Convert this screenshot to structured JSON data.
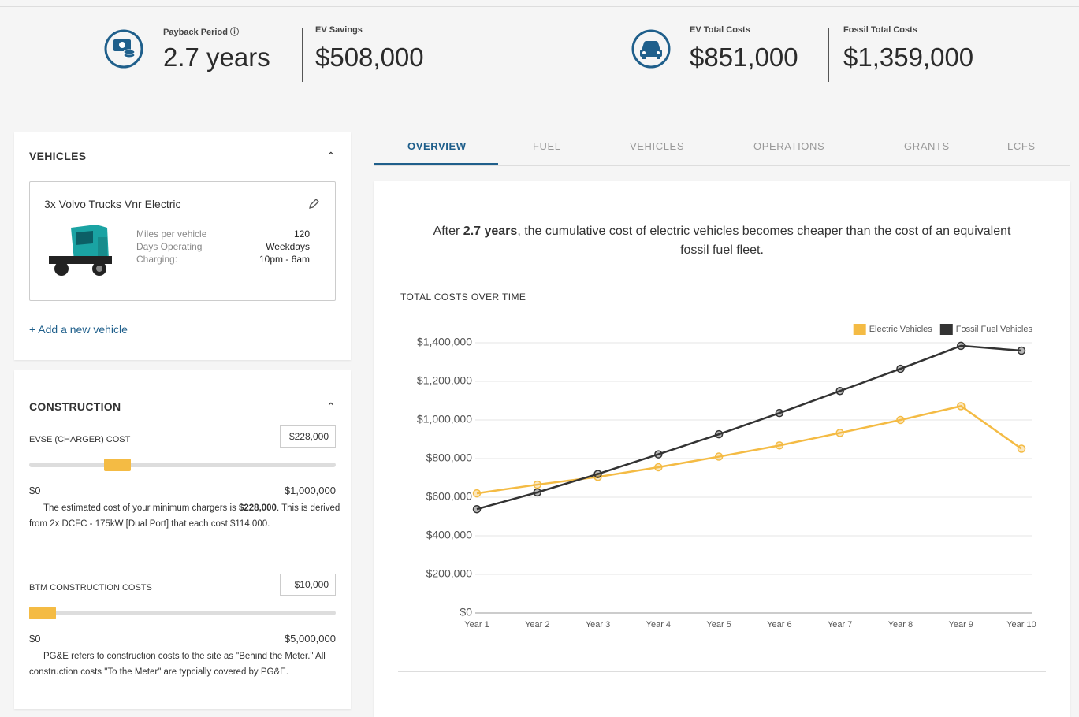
{
  "summary_bar": {
    "stats": [
      {
        "label": "Payback Period",
        "value": "2.7 years"
      },
      {
        "label": "EV Savings",
        "value": "$508,000"
      },
      {
        "label": "EV Total Costs",
        "value": "$851,000"
      },
      {
        "label": "Fossil Total Costs",
        "value": "$1,359,000"
      }
    ]
  },
  "vehicles_panel": {
    "title": "VEHICLES",
    "vehicle": {
      "name": "3x Volvo Trucks Vnr Electric",
      "specs": [
        {
          "label": "Miles per vehicle",
          "value": "120"
        },
        {
          "label": "Days Operating",
          "value": "Weekdays"
        },
        {
          "label": "Charging:",
          "value": "10pm - 6am"
        }
      ]
    },
    "add_link": "+ Add a new vehicle"
  },
  "construction_panel": {
    "title": "CONSTRUCTION",
    "items": [
      {
        "label": "EVSE (CHARGER) COST",
        "input": "$228,000",
        "min": "$0",
        "max": "$1,000,000",
        "note": {
          "before": "The estimated cost of your minimum chargers is ",
          "bold": "$228,000",
          "after": ". This is derived from 2x DCFC - 175kW [Dual Port] that each cost $114,000."
        }
      },
      {
        "label": "BTM CONSTRUCTION COSTS",
        "input": "$10,000",
        "min": "$0",
        "max": "$5,000,000",
        "note": {
          "before": "PG&E refers to construction costs to the site as \"Behind the Meter.\" All construction costs \"To the Meter\" are typcially covered by PG&E."
        }
      }
    ]
  },
  "tabs": {
    "items": [
      "OVERVIEW",
      "FUEL",
      "VEHICLES",
      "OPERATIONS",
      "GRANTS",
      "LCFS"
    ],
    "active": 0
  },
  "summary": {
    "before": "After ",
    "bold": "2.7 years",
    "after": ", the cumulative cost of electric vehicles becomes cheaper than the cost of an equivalent fossil fuel fleet."
  },
  "chart_data": {
    "type": "line",
    "title": "TOTAL COSTS OVER TIME",
    "categories": [
      "Year 1",
      "Year 2",
      "Year 3",
      "Year 4",
      "Year 5",
      "Year 6",
      "Year 7",
      "Year 8",
      "Year 9",
      "Year 10"
    ],
    "series": [
      {
        "name": "Electric Vehicles",
        "color": "#f4bb44",
        "values": [
          620000,
          665000,
          705000,
          755000,
          810000,
          868000,
          933000,
          1000000,
          1072000,
          851000
        ]
      },
      {
        "name": "Fossil Fuel Vehicles",
        "color": "#333333",
        "values": [
          538000,
          625000,
          720000,
          822000,
          926000,
          1036000,
          1150000,
          1265000,
          1384000,
          1359000
        ]
      }
    ],
    "ylim": [
      0,
      1400000
    ],
    "yticks": [
      {
        "value": 0,
        "label": "$0"
      },
      {
        "value": 200000,
        "label": "$200,000"
      },
      {
        "value": 400000,
        "label": "$400,000"
      },
      {
        "value": 600000,
        "label": "$600,000"
      },
      {
        "value": 800000,
        "label": "$800,000"
      },
      {
        "value": 1000000,
        "label": "$1,000,000"
      },
      {
        "value": 1200000,
        "label": "$1,200,000"
      },
      {
        "value": 1400000,
        "label": "$1,400,000"
      }
    ],
    "grid": true,
    "legend": "top-right"
  }
}
